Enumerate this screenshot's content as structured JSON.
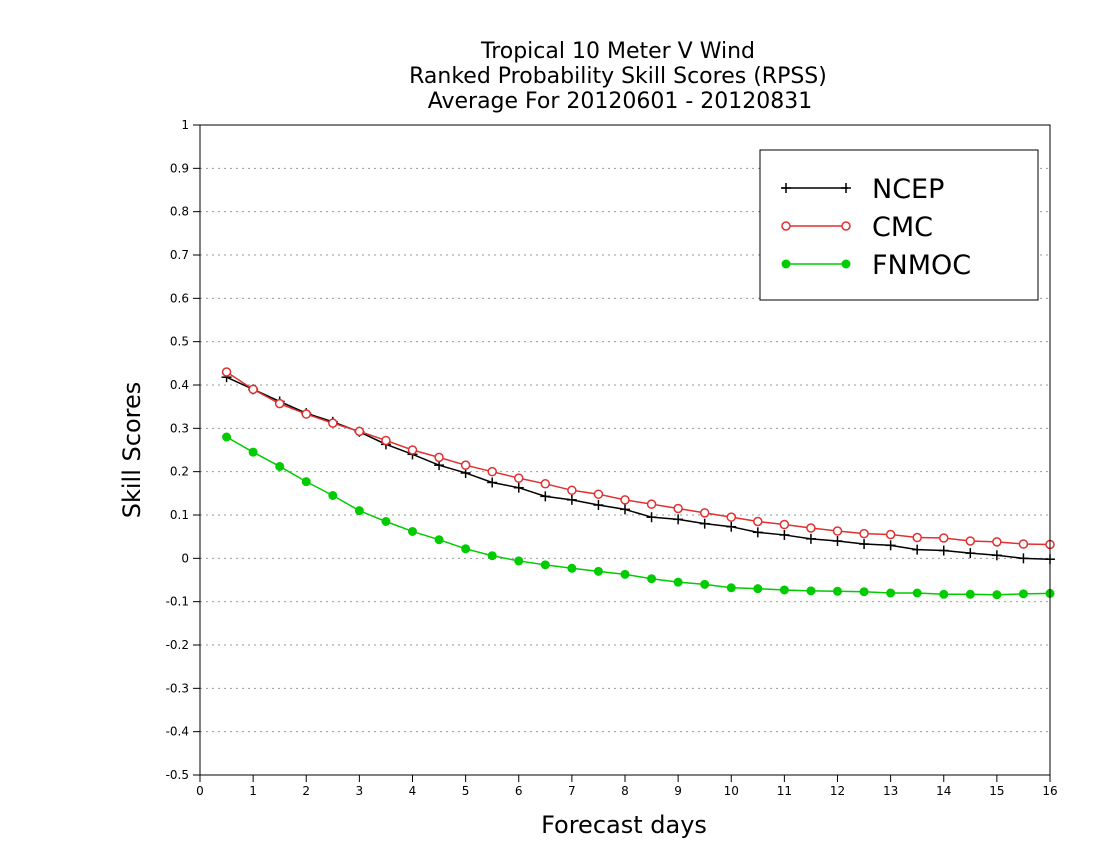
{
  "chart_data": {
    "type": "line",
    "title_lines": [
      "Tropical 10 Meter V Wind",
      "Ranked Probability Skill Scores (RPSS)",
      "Average For 20120601 - 20120831"
    ],
    "xlabel": "Forecast days",
    "ylabel": "Skill Scores",
    "xlim": [
      0,
      16
    ],
    "ylim": [
      -0.5,
      1
    ],
    "x_ticks": [
      0,
      1,
      2,
      3,
      4,
      5,
      6,
      7,
      8,
      9,
      10,
      11,
      12,
      13,
      14,
      15,
      16
    ],
    "y_ticks": [
      -0.5,
      -0.4,
      -0.3,
      -0.2,
      -0.1,
      0,
      0.1,
      0.2,
      0.3,
      0.4,
      0.5,
      0.6,
      0.7,
      0.8,
      0.9,
      1
    ],
    "y_tick_labels": [
      "-0.5",
      "-0.4",
      "-0.3",
      "-0.2",
      "-0.1",
      "0",
      "0.1",
      "0.2",
      "0.3",
      "0.4",
      "0.5",
      "0.6",
      "0.7",
      "0.8",
      "0.9",
      "1"
    ],
    "grid": "dotted-horizontal",
    "legend_position": "top-right",
    "x": [
      0.5,
      1,
      1.5,
      2,
      2.5,
      3,
      3.5,
      4,
      4.5,
      5,
      5.5,
      6,
      6.5,
      7,
      7.5,
      8,
      8.5,
      9,
      9.5,
      10,
      10.5,
      11,
      11.5,
      12,
      12.5,
      13,
      13.5,
      14,
      14.5,
      15,
      15.5,
      16
    ],
    "series": [
      {
        "name": "NCEP",
        "color": "#000000",
        "marker": "plus",
        "values": [
          0.418,
          0.39,
          0.362,
          0.335,
          0.315,
          0.292,
          0.263,
          0.24,
          0.215,
          0.197,
          0.175,
          0.163,
          0.143,
          0.135,
          0.123,
          0.113,
          0.095,
          0.09,
          0.08,
          0.073,
          0.06,
          0.054,
          0.045,
          0.04,
          0.033,
          0.03,
          0.02,
          0.018,
          0.012,
          0.007,
          0.0,
          -0.002
        ]
      },
      {
        "name": "CMC",
        "color": "#e03030",
        "marker": "open-circle",
        "values": [
          0.43,
          0.39,
          0.357,
          0.333,
          0.312,
          0.293,
          0.272,
          0.25,
          0.233,
          0.215,
          0.2,
          0.185,
          0.172,
          0.157,
          0.148,
          0.135,
          0.125,
          0.115,
          0.105,
          0.095,
          0.085,
          0.078,
          0.07,
          0.063,
          0.057,
          0.055,
          0.048,
          0.047,
          0.04,
          0.038,
          0.033,
          0.032
        ]
      },
      {
        "name": "FNMOC",
        "color": "#00cc00",
        "marker": "filled-circle",
        "values": [
          0.28,
          0.245,
          0.212,
          0.177,
          0.145,
          0.11,
          0.085,
          0.062,
          0.043,
          0.022,
          0.006,
          -0.006,
          -0.015,
          -0.023,
          -0.03,
          -0.037,
          -0.047,
          -0.055,
          -0.06,
          -0.068,
          -0.07,
          -0.073,
          -0.075,
          -0.076,
          -0.077,
          -0.08,
          -0.08,
          -0.083,
          -0.083,
          -0.084,
          -0.082,
          -0.081
        ]
      }
    ]
  }
}
